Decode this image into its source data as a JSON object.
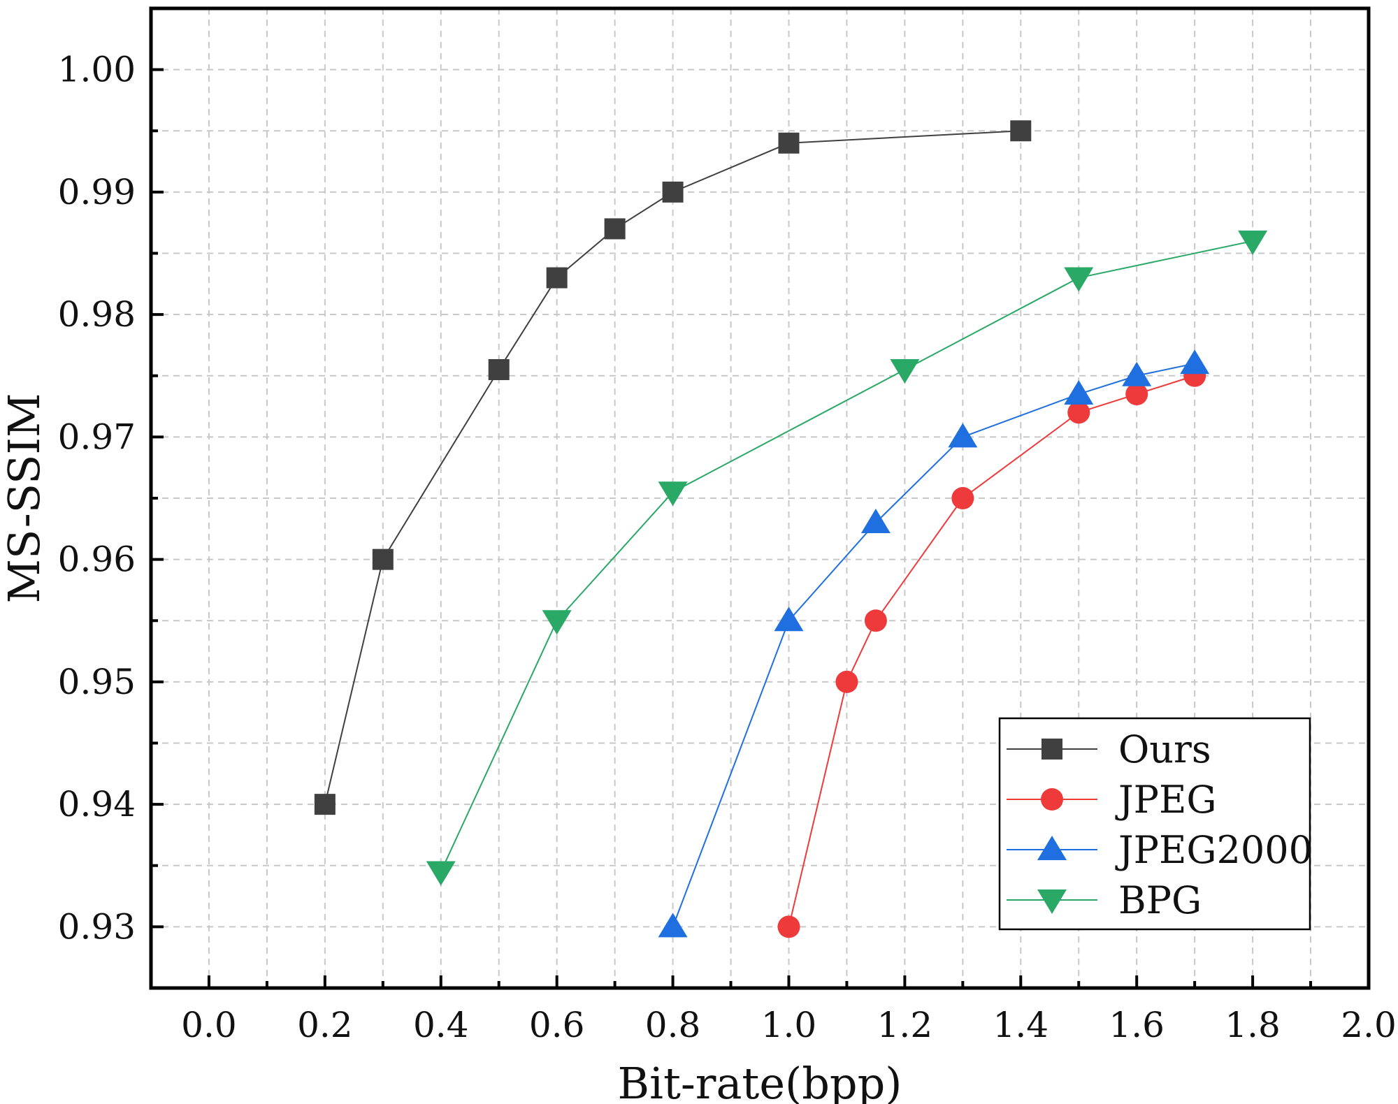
{
  "chart_data": {
    "type": "line",
    "title": "",
    "xlabel": "Bit-rate(bpp)",
    "ylabel": "MS-SSIM",
    "xlim": [
      -0.1,
      2.0
    ],
    "ylim": [
      0.925,
      1.005
    ],
    "xticks": [
      0.0,
      0.2,
      0.4,
      0.6,
      0.8,
      1.0,
      1.2,
      1.4,
      1.6,
      1.8,
      2.0
    ],
    "xtick_labels": [
      "0.0",
      "0.2",
      "0.4",
      "0.6",
      "0.8",
      "1.0",
      "1.2",
      "1.4",
      "1.6",
      "1.8",
      "2.0"
    ],
    "yticks": [
      0.93,
      0.94,
      0.95,
      0.96,
      0.97,
      0.98,
      0.99,
      1.0
    ],
    "ytick_labels": [
      "0.93",
      "0.94",
      "0.95",
      "0.96",
      "0.97",
      "0.98",
      "0.99",
      "1.00"
    ],
    "grid": true,
    "legend_position": "bottom-right",
    "series": [
      {
        "name": "Ours",
        "marker": "square",
        "color": "#404040",
        "x": [
          0.2,
          0.3,
          0.5,
          0.6,
          0.7,
          0.8,
          1.0,
          1.4
        ],
        "y": [
          0.94,
          0.96,
          0.9755,
          0.983,
          0.987,
          0.99,
          0.994,
          0.995
        ]
      },
      {
        "name": "JPEG",
        "marker": "circle",
        "color": "#ee3a3a",
        "x": [
          1.0,
          1.1,
          1.15,
          1.3,
          1.5,
          1.6,
          1.7
        ],
        "y": [
          0.93,
          0.95,
          0.955,
          0.965,
          0.972,
          0.9735,
          0.975
        ]
      },
      {
        "name": "JPEG2000",
        "marker": "triangle-up",
        "color": "#1f6fe0",
        "x": [
          0.8,
          1.0,
          1.15,
          1.3,
          1.5,
          1.6,
          1.7
        ],
        "y": [
          0.93,
          0.955,
          0.963,
          0.97,
          0.9735,
          0.975,
          0.976
        ]
      },
      {
        "name": "BPG",
        "marker": "triangle-down",
        "color": "#2aa866",
        "x": [
          0.4,
          0.6,
          0.8,
          1.2,
          1.5,
          1.8
        ],
        "y": [
          0.9345,
          0.955,
          0.9655,
          0.9755,
          0.983,
          0.986
        ]
      }
    ]
  }
}
